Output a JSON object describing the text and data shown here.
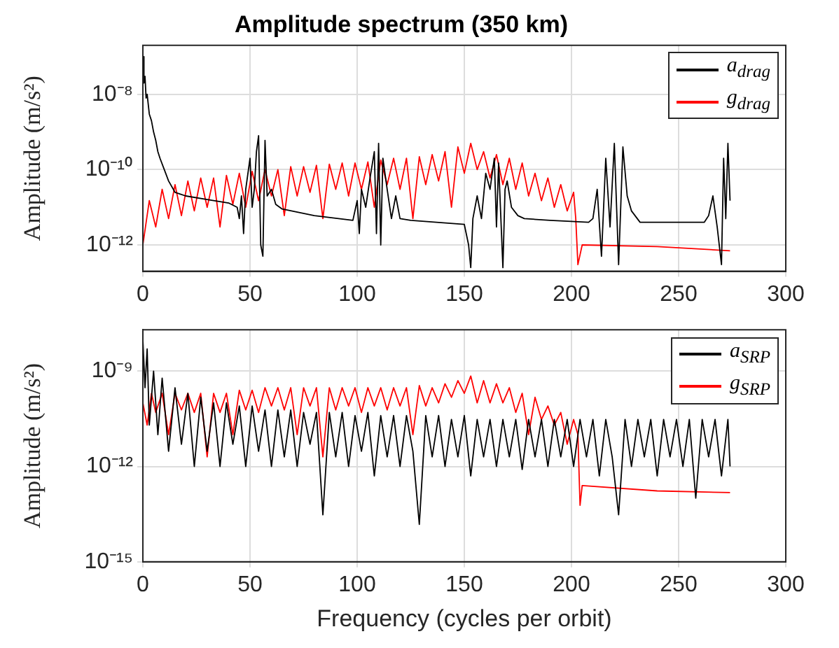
{
  "chart_data": [
    {
      "type": "line",
      "title": "Amplitude spectrum (350 km)",
      "ylabel": "Amplitude (m/s²)",
      "log": "y",
      "grid": true,
      "legend": "top right",
      "xlim": [
        0,
        300
      ],
      "xticks": [
        0,
        50,
        100,
        150,
        200,
        250,
        300
      ],
      "ylim": [
        2e-13,
        2e-07
      ],
      "yticks": [
        {
          "value": 1e-12,
          "label": "10⁻¹²"
        },
        {
          "value": 1e-10,
          "label": "10⁻¹⁰"
        },
        {
          "value": 1e-08,
          "label": "10⁻⁸"
        }
      ],
      "series": [
        {
          "name": "a$_{drag}$",
          "color": "#000000",
          "x": [
            0,
            0.5,
            1,
            1.5,
            2,
            3,
            4,
            5,
            6,
            7,
            8,
            10,
            12,
            15,
            20,
            30,
            40,
            44,
            45,
            46,
            47,
            48,
            50,
            51,
            52,
            53,
            54,
            55,
            56,
            57,
            58,
            60,
            62,
            65,
            80,
            98,
            100,
            101,
            102,
            104,
            106,
            108,
            109,
            110,
            111,
            112,
            114,
            116,
            118,
            120,
            125,
            150,
            152,
            153,
            154,
            156,
            158,
            160,
            162,
            164,
            165,
            166,
            168,
            169,
            170,
            172,
            175,
            178,
            190,
            208,
            210,
            212,
            214,
            216,
            218,
            220,
            222,
            224,
            226,
            228,
            232,
            250,
            262,
            264,
            266,
            268,
            270,
            271,
            272,
            273,
            274
          ],
          "values": [
            1e-07,
            2e-08,
            3e-08,
            8e-09,
            1e-08,
            3e-09,
            2e-09,
            1e-09,
            6e-10,
            3e-10,
            2e-10,
            1e-10,
            5e-11,
            2.5e-11,
            2e-11,
            1.6e-11,
            1.3e-11,
            1e-11,
            5e-12,
            2e-11,
            2e-12,
            3e-11,
            2e-10,
            1e-11,
            3e-11,
            3e-10,
            8e-10,
            1e-12,
            5e-13,
            6e-10,
            2e-11,
            3e-11,
            1.2e-11,
            9e-12,
            6e-12,
            4.5e-12,
            1.5e-11,
            2e-12,
            3e-11,
            1e-11,
            6e-11,
            3e-10,
            2e-12,
            5e-10,
            1e-12,
            2e-10,
            3e-11,
            5e-12,
            2e-11,
            5e-12,
            4.5e-12,
            3.5e-12,
            1e-12,
            2.5e-13,
            5e-12,
            2e-11,
            5e-12,
            8e-11,
            3e-11,
            2e-10,
            3e-12,
            1.5e-10,
            2.5e-13,
            3e-11,
            5e-11,
            1e-11,
            6e-12,
            5e-12,
            4.5e-12,
            4e-12,
            5e-12,
            3e-11,
            5e-13,
            2e-10,
            3e-12,
            5e-10,
            3e-13,
            4e-10,
            2e-11,
            8e-12,
            4e-12,
            4e-12,
            4e-12,
            6e-12,
            2e-11,
            3e-12,
            3e-13,
            2e-10,
            5e-12,
            5e-10,
            1.5e-11
          ]
        },
        {
          "name": "g$_{drag}$",
          "color": "#ff0000",
          "x": [
            0,
            3,
            6,
            9,
            12,
            15,
            18,
            21,
            24,
            27,
            30,
            33,
            36,
            39,
            42,
            45,
            48,
            51,
            54,
            57,
            60,
            63,
            66,
            69,
            72,
            75,
            78,
            81,
            84,
            87,
            90,
            93,
            96,
            99,
            102,
            105,
            108,
            111,
            114,
            117,
            120,
            123,
            126,
            129,
            132,
            135,
            138,
            141,
            144,
            147,
            150,
            153,
            156,
            159,
            162,
            165,
            168,
            171,
            174,
            177,
            180,
            183,
            186,
            189,
            192,
            195,
            198,
            201,
            202,
            203,
            205,
            240,
            274
          ],
          "values": [
            1e-12,
            1.5e-11,
            3e-12,
            3e-11,
            5e-12,
            4e-11,
            6e-12,
            5e-11,
            8e-12,
            6e-11,
            1e-11,
            6e-11,
            3e-12,
            7e-11,
            1.2e-11,
            8e-11,
            1e-11,
            9e-11,
            1.5e-11,
            1e-10,
            2e-11,
            1e-10,
            6e-12,
            1.2e-10,
            2e-11,
            1.2e-10,
            2.5e-11,
            1.3e-10,
            5e-12,
            1.4e-10,
            3e-11,
            1.5e-10,
            2e-11,
            1.5e-10,
            3e-11,
            1.6e-10,
            1e-11,
            1.8e-10,
            4e-11,
            2e-10,
            3e-11,
            2e-10,
            5e-12,
            2.2e-10,
            4e-11,
            2.5e-10,
            5e-11,
            3e-10,
            1e-11,
            4e-10,
            8e-11,
            5e-10,
            1e-10,
            3e-10,
            6e-11,
            2.5e-10,
            4e-11,
            2e-10,
            3e-11,
            1.5e-10,
            2e-11,
            8e-11,
            1.5e-11,
            6e-11,
            1e-11,
            4e-11,
            8e-12,
            2.5e-11,
            5e-12,
            3e-13,
            1e-12,
            9e-13,
            7e-13
          ]
        }
      ]
    },
    {
      "type": "line",
      "xlabel": "Frequency (cycles per orbit)",
      "ylabel": "Amplitude (m/s²)",
      "log": "y",
      "grid": true,
      "legend": "top right",
      "xlim": [
        0,
        300
      ],
      "xticks": [
        0,
        50,
        100,
        150,
        200,
        250,
        300
      ],
      "ylim": [
        1e-15,
        2e-08
      ],
      "yticks": [
        {
          "value": 1e-15,
          "label": "10⁻¹⁵"
        },
        {
          "value": 1e-12,
          "label": "10⁻¹²"
        },
        {
          "value": 1e-09,
          "label": "10⁻⁹"
        }
      ],
      "series": [
        {
          "name": "a$_{SRP}$",
          "color": "#000000",
          "x": [
            0,
            1,
            2,
            3,
            5,
            7,
            9,
            12,
            15,
            18,
            21,
            24,
            27,
            30,
            33,
            36,
            39,
            42,
            45,
            48,
            51,
            54,
            57,
            60,
            63,
            66,
            69,
            72,
            75,
            78,
            81,
            84,
            87,
            90,
            93,
            96,
            99,
            102,
            105,
            108,
            111,
            114,
            117,
            120,
            123,
            126,
            129,
            132,
            135,
            138,
            141,
            144,
            147,
            150,
            153,
            156,
            159,
            162,
            165,
            168,
            171,
            174,
            177,
            180,
            183,
            186,
            189,
            192,
            195,
            198,
            201,
            204,
            207,
            210,
            213,
            216,
            219,
            222,
            225,
            228,
            231,
            234,
            237,
            240,
            243,
            246,
            249,
            252,
            255,
            258,
            261,
            264,
            267,
            270,
            273,
            274
          ],
          "values": [
            1e-08,
            3e-10,
            5e-09,
            2e-11,
            1e-09,
            1e-11,
            6e-10,
            3e-12,
            3e-10,
            5e-12,
            2e-10,
            1e-12,
            1.5e-10,
            3e-12,
            1e-10,
            1e-12,
            1e-10,
            5e-12,
            8e-11,
            1e-12,
            8e-11,
            3e-12,
            6e-11,
            1e-12,
            6e-11,
            2e-12,
            6e-11,
            1e-12,
            5e-11,
            5e-12,
            5e-11,
            3e-14,
            5e-11,
            2e-12,
            5e-11,
            1e-12,
            4e-11,
            3e-12,
            5e-11,
            5e-13,
            4e-11,
            2e-12,
            4e-11,
            1e-12,
            4e-11,
            3e-12,
            1.5e-14,
            4e-11,
            2e-12,
            4e-11,
            1e-12,
            3e-11,
            2e-12,
            4e-11,
            5e-13,
            3e-11,
            2e-12,
            3e-11,
            1e-12,
            3e-11,
            2e-12,
            3e-11,
            8e-13,
            3e-11,
            2e-12,
            3e-11,
            1e-12,
            3e-11,
            2e-12,
            3e-11,
            1e-12,
            3e-11,
            2e-12,
            3e-11,
            5e-13,
            3e-11,
            2e-12,
            3e-14,
            3e-11,
            1e-12,
            3e-11,
            2e-12,
            3e-11,
            5e-13,
            3e-11,
            2e-12,
            3e-11,
            1e-12,
            3e-11,
            1e-13,
            3e-11,
            2e-12,
            3e-11,
            5e-13,
            3e-11,
            1e-12
          ]
        },
        {
          "name": "g$_{SRP}$",
          "color": "#ff0000",
          "x": [
            0,
            2,
            4,
            6,
            9,
            12,
            15,
            18,
            21,
            24,
            27,
            30,
            33,
            36,
            39,
            42,
            45,
            48,
            51,
            54,
            57,
            60,
            63,
            66,
            69,
            72,
            75,
            78,
            81,
            84,
            87,
            90,
            93,
            96,
            99,
            102,
            105,
            108,
            111,
            114,
            117,
            120,
            123,
            126,
            129,
            132,
            135,
            138,
            141,
            144,
            147,
            150,
            153,
            156,
            159,
            162,
            165,
            168,
            171,
            174,
            177,
            180,
            183,
            186,
            189,
            192,
            195,
            198,
            201,
            203,
            204,
            205,
            240,
            274
          ],
          "values": [
            1e-10,
            2e-11,
            2e-10,
            5e-11,
            2e-10,
            1e-11,
            2e-10,
            6e-11,
            2e-10,
            5e-11,
            2e-10,
            2e-12,
            2e-10,
            5e-11,
            2e-10,
            1e-11,
            2.5e-10,
            6e-11,
            2.5e-10,
            5e-11,
            3e-10,
            8e-11,
            3e-10,
            6e-11,
            3e-10,
            1e-11,
            3e-10,
            8e-11,
            3e-10,
            2e-12,
            3e-10,
            6e-11,
            3e-10,
            8e-11,
            3e-10,
            5e-11,
            3e-10,
            8e-11,
            3e-10,
            6e-11,
            3e-10,
            8e-11,
            3e-10,
            1e-11,
            3.5e-10,
            8e-11,
            3e-10,
            1e-10,
            4e-10,
            1.5e-10,
            5e-10,
            2e-10,
            7e-10,
            1e-10,
            5e-10,
            1e-10,
            4e-10,
            1e-10,
            3e-10,
            5e-11,
            2e-10,
            1e-11,
            1.5e-10,
            3e-11,
            8e-11,
            2e-11,
            5e-11,
            5e-12,
            3e-11,
            1e-11,
            6e-14,
            2.5e-13,
            1.7e-13,
            1.5e-13
          ]
        }
      ]
    }
  ]
}
